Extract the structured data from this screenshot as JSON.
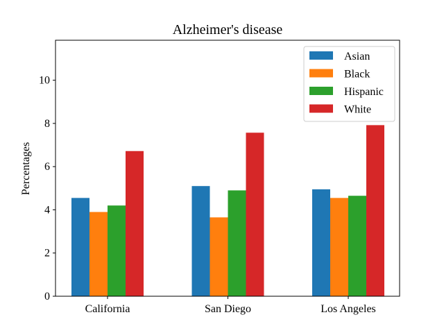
{
  "chart_data": {
    "type": "bar",
    "title": "Alzheimer's disease",
    "xlabel": "",
    "ylabel": "Percentages",
    "categories": [
      "California",
      "San Diego",
      "Los Angeles"
    ],
    "series": [
      {
        "name": "Asian",
        "color": "#1f77b4",
        "values": [
          4.55,
          5.1,
          4.95
        ]
      },
      {
        "name": "Black",
        "color": "#ff7f0e",
        "values": [
          3.9,
          3.65,
          4.55
        ]
      },
      {
        "name": "Hispanic",
        "color": "#2ca02c",
        "values": [
          4.2,
          4.9,
          4.65
        ]
      },
      {
        "name": "White",
        "color": "#d62728",
        "values": [
          6.72,
          7.57,
          7.92
        ]
      }
    ],
    "ylim": [
      0,
      11.85
    ],
    "yticks": [
      0,
      2,
      4,
      6,
      8,
      10
    ],
    "grid": false,
    "legend": "top-right"
  }
}
